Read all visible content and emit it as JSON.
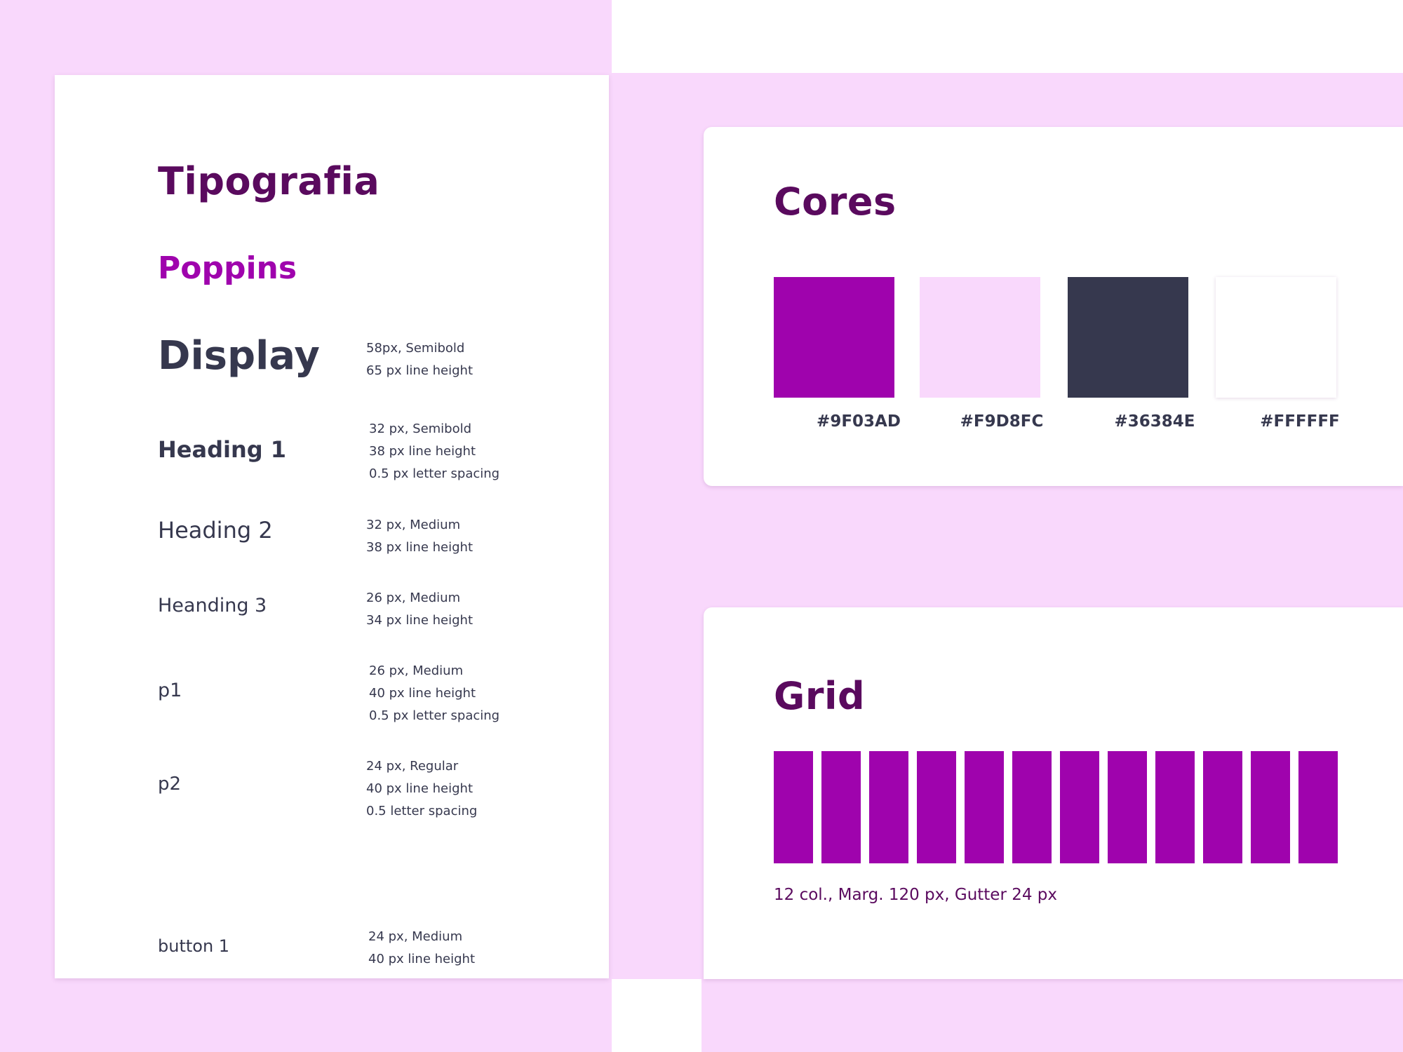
{
  "colors": {
    "accent": "#9F03AD",
    "pink": "#F9D8FC",
    "dark": "#36384E",
    "white": "#FFFFFF",
    "title": "#5A0A5E"
  },
  "typography": {
    "title": "Tipografia",
    "font_name": "Poppins",
    "styles": [
      {
        "name": "Display",
        "specs": [
          "58px, Semibold",
          "65 px line height"
        ]
      },
      {
        "name": "Heading 1",
        "specs": [
          "32 px, Semibold",
          "38 px line height",
          "0.5 px letter spacing"
        ]
      },
      {
        "name": "Heading 2",
        "specs": [
          "32 px, Medium",
          "38 px line height"
        ]
      },
      {
        "name": "Heanding 3",
        "specs": [
          "26 px, Medium",
          "34 px line height"
        ]
      },
      {
        "name": "p1",
        "specs": [
          "26 px, Medium",
          "40 px line height",
          "0.5 px letter spacing"
        ]
      },
      {
        "name": "p2",
        "specs": [
          "24 px, Regular",
          "40 px line height",
          "0.5 letter spacing"
        ]
      },
      {
        "name": "button 1",
        "specs": [
          "24 px, Medium",
          "40 px line height"
        ]
      }
    ]
  },
  "colors_panel": {
    "title": "Cores",
    "swatches": [
      {
        "hex": "#9F03AD"
      },
      {
        "hex": "#F9D8FC"
      },
      {
        "hex": "#36384E"
      },
      {
        "hex": "#FFFFFF"
      }
    ]
  },
  "grid_panel": {
    "title": "Grid",
    "columns": 12,
    "caption": "12 col., Marg. 120 px, Gutter 24 px"
  }
}
